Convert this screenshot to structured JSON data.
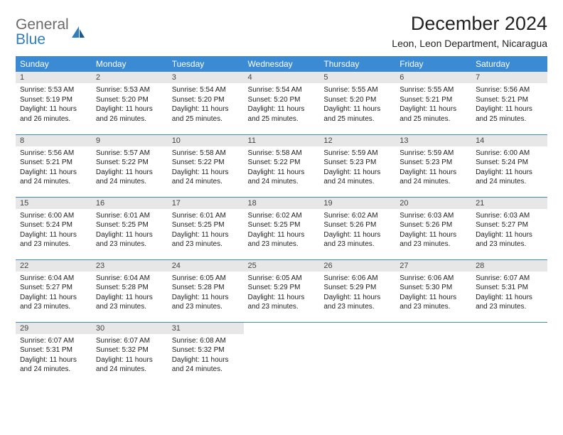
{
  "brand": {
    "top": "General",
    "bottom": "Blue"
  },
  "header": {
    "title": "December 2024",
    "location": "Leon, Leon Department, Nicaragua"
  },
  "colors": {
    "header_bg": "#3a8bd4",
    "header_text": "#ffffff",
    "daynum_bg": "#e7e7e7",
    "row_divider": "#3a8bd4",
    "brand_top": "#6a6a6a",
    "brand_bottom": "#2f7fbf",
    "body_text": "#222222"
  },
  "weekdays": [
    "Sunday",
    "Monday",
    "Tuesday",
    "Wednesday",
    "Thursday",
    "Friday",
    "Saturday"
  ],
  "weeks": [
    [
      {
        "num": "1",
        "sunrise": "Sunrise: 5:53 AM",
        "sunset": "Sunset: 5:19 PM",
        "daylight": "Daylight: 11 hours and 26 minutes."
      },
      {
        "num": "2",
        "sunrise": "Sunrise: 5:53 AM",
        "sunset": "Sunset: 5:20 PM",
        "daylight": "Daylight: 11 hours and 26 minutes."
      },
      {
        "num": "3",
        "sunrise": "Sunrise: 5:54 AM",
        "sunset": "Sunset: 5:20 PM",
        "daylight": "Daylight: 11 hours and 25 minutes."
      },
      {
        "num": "4",
        "sunrise": "Sunrise: 5:54 AM",
        "sunset": "Sunset: 5:20 PM",
        "daylight": "Daylight: 11 hours and 25 minutes."
      },
      {
        "num": "5",
        "sunrise": "Sunrise: 5:55 AM",
        "sunset": "Sunset: 5:20 PM",
        "daylight": "Daylight: 11 hours and 25 minutes."
      },
      {
        "num": "6",
        "sunrise": "Sunrise: 5:55 AM",
        "sunset": "Sunset: 5:21 PM",
        "daylight": "Daylight: 11 hours and 25 minutes."
      },
      {
        "num": "7",
        "sunrise": "Sunrise: 5:56 AM",
        "sunset": "Sunset: 5:21 PM",
        "daylight": "Daylight: 11 hours and 25 minutes."
      }
    ],
    [
      {
        "num": "8",
        "sunrise": "Sunrise: 5:56 AM",
        "sunset": "Sunset: 5:21 PM",
        "daylight": "Daylight: 11 hours and 24 minutes."
      },
      {
        "num": "9",
        "sunrise": "Sunrise: 5:57 AM",
        "sunset": "Sunset: 5:22 PM",
        "daylight": "Daylight: 11 hours and 24 minutes."
      },
      {
        "num": "10",
        "sunrise": "Sunrise: 5:58 AM",
        "sunset": "Sunset: 5:22 PM",
        "daylight": "Daylight: 11 hours and 24 minutes."
      },
      {
        "num": "11",
        "sunrise": "Sunrise: 5:58 AM",
        "sunset": "Sunset: 5:22 PM",
        "daylight": "Daylight: 11 hours and 24 minutes."
      },
      {
        "num": "12",
        "sunrise": "Sunrise: 5:59 AM",
        "sunset": "Sunset: 5:23 PM",
        "daylight": "Daylight: 11 hours and 24 minutes."
      },
      {
        "num": "13",
        "sunrise": "Sunrise: 5:59 AM",
        "sunset": "Sunset: 5:23 PM",
        "daylight": "Daylight: 11 hours and 24 minutes."
      },
      {
        "num": "14",
        "sunrise": "Sunrise: 6:00 AM",
        "sunset": "Sunset: 5:24 PM",
        "daylight": "Daylight: 11 hours and 24 minutes."
      }
    ],
    [
      {
        "num": "15",
        "sunrise": "Sunrise: 6:00 AM",
        "sunset": "Sunset: 5:24 PM",
        "daylight": "Daylight: 11 hours and 23 minutes."
      },
      {
        "num": "16",
        "sunrise": "Sunrise: 6:01 AM",
        "sunset": "Sunset: 5:25 PM",
        "daylight": "Daylight: 11 hours and 23 minutes."
      },
      {
        "num": "17",
        "sunrise": "Sunrise: 6:01 AM",
        "sunset": "Sunset: 5:25 PM",
        "daylight": "Daylight: 11 hours and 23 minutes."
      },
      {
        "num": "18",
        "sunrise": "Sunrise: 6:02 AM",
        "sunset": "Sunset: 5:25 PM",
        "daylight": "Daylight: 11 hours and 23 minutes."
      },
      {
        "num": "19",
        "sunrise": "Sunrise: 6:02 AM",
        "sunset": "Sunset: 5:26 PM",
        "daylight": "Daylight: 11 hours and 23 minutes."
      },
      {
        "num": "20",
        "sunrise": "Sunrise: 6:03 AM",
        "sunset": "Sunset: 5:26 PM",
        "daylight": "Daylight: 11 hours and 23 minutes."
      },
      {
        "num": "21",
        "sunrise": "Sunrise: 6:03 AM",
        "sunset": "Sunset: 5:27 PM",
        "daylight": "Daylight: 11 hours and 23 minutes."
      }
    ],
    [
      {
        "num": "22",
        "sunrise": "Sunrise: 6:04 AM",
        "sunset": "Sunset: 5:27 PM",
        "daylight": "Daylight: 11 hours and 23 minutes."
      },
      {
        "num": "23",
        "sunrise": "Sunrise: 6:04 AM",
        "sunset": "Sunset: 5:28 PM",
        "daylight": "Daylight: 11 hours and 23 minutes."
      },
      {
        "num": "24",
        "sunrise": "Sunrise: 6:05 AM",
        "sunset": "Sunset: 5:28 PM",
        "daylight": "Daylight: 11 hours and 23 minutes."
      },
      {
        "num": "25",
        "sunrise": "Sunrise: 6:05 AM",
        "sunset": "Sunset: 5:29 PM",
        "daylight": "Daylight: 11 hours and 23 minutes."
      },
      {
        "num": "26",
        "sunrise": "Sunrise: 6:06 AM",
        "sunset": "Sunset: 5:29 PM",
        "daylight": "Daylight: 11 hours and 23 minutes."
      },
      {
        "num": "27",
        "sunrise": "Sunrise: 6:06 AM",
        "sunset": "Sunset: 5:30 PM",
        "daylight": "Daylight: 11 hours and 23 minutes."
      },
      {
        "num": "28",
        "sunrise": "Sunrise: 6:07 AM",
        "sunset": "Sunset: 5:31 PM",
        "daylight": "Daylight: 11 hours and 23 minutes."
      }
    ],
    [
      {
        "num": "29",
        "sunrise": "Sunrise: 6:07 AM",
        "sunset": "Sunset: 5:31 PM",
        "daylight": "Daylight: 11 hours and 24 minutes."
      },
      {
        "num": "30",
        "sunrise": "Sunrise: 6:07 AM",
        "sunset": "Sunset: 5:32 PM",
        "daylight": "Daylight: 11 hours and 24 minutes."
      },
      {
        "num": "31",
        "sunrise": "Sunrise: 6:08 AM",
        "sunset": "Sunset: 5:32 PM",
        "daylight": "Daylight: 11 hours and 24 minutes."
      },
      {
        "num": "",
        "sunrise": "",
        "sunset": "",
        "daylight": ""
      },
      {
        "num": "",
        "sunrise": "",
        "sunset": "",
        "daylight": ""
      },
      {
        "num": "",
        "sunrise": "",
        "sunset": "",
        "daylight": ""
      },
      {
        "num": "",
        "sunrise": "",
        "sunset": "",
        "daylight": ""
      }
    ]
  ]
}
